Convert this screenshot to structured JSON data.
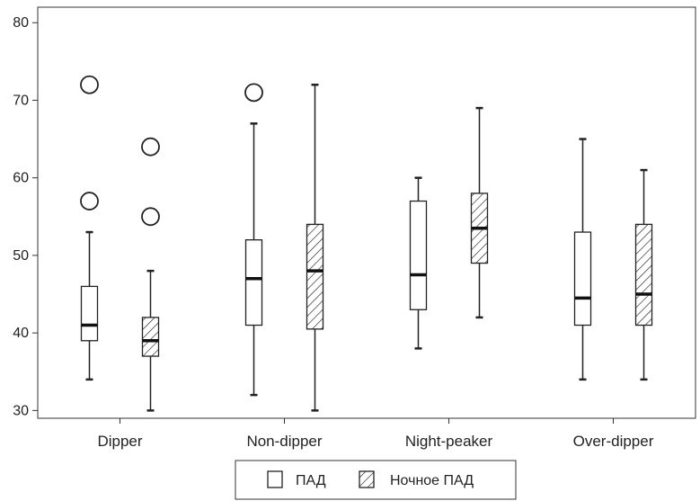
{
  "chart_data": {
    "type": "boxplot",
    "title": "",
    "xlabel": "",
    "ylabel": "",
    "ylim": [
      29,
      82
    ],
    "yticks": [
      30,
      40,
      50,
      60,
      70,
      80
    ],
    "grid": false,
    "legend_position": "bottom-center",
    "categories": [
      "Dipper",
      "Non-dipper",
      "Night-peaker",
      "Over-dipper"
    ],
    "series": [
      {
        "name": "ПАД",
        "fill": "plain",
        "boxes": [
          {
            "min": 34,
            "q1": 39,
            "median": 41,
            "q3": 46,
            "max": 53,
            "outliers": [
              57,
              72
            ]
          },
          {
            "min": 32,
            "q1": 41,
            "median": 47,
            "q3": 52,
            "max": 67,
            "outliers": [
              71
            ]
          },
          {
            "min": 38,
            "q1": 43,
            "median": 47.5,
            "q3": 57,
            "max": 60,
            "outliers": []
          },
          {
            "min": 34,
            "q1": 41,
            "median": 44.5,
            "q3": 53,
            "max": 65,
            "outliers": []
          }
        ]
      },
      {
        "name": "Ночное ПАД",
        "fill": "hatched",
        "boxes": [
          {
            "min": 30,
            "q1": 37,
            "median": 39,
            "q3": 42,
            "max": 48,
            "outliers": [
              55,
              64
            ]
          },
          {
            "min": 30,
            "q1": 40.5,
            "median": 48,
            "q3": 54,
            "max": 72,
            "outliers": []
          },
          {
            "min": 42,
            "q1": 49,
            "median": 53.5,
            "q3": 58,
            "max": 69,
            "outliers": []
          },
          {
            "min": 34,
            "q1": 41,
            "median": 45,
            "q3": 54,
            "max": 61,
            "outliers": []
          }
        ]
      }
    ]
  }
}
